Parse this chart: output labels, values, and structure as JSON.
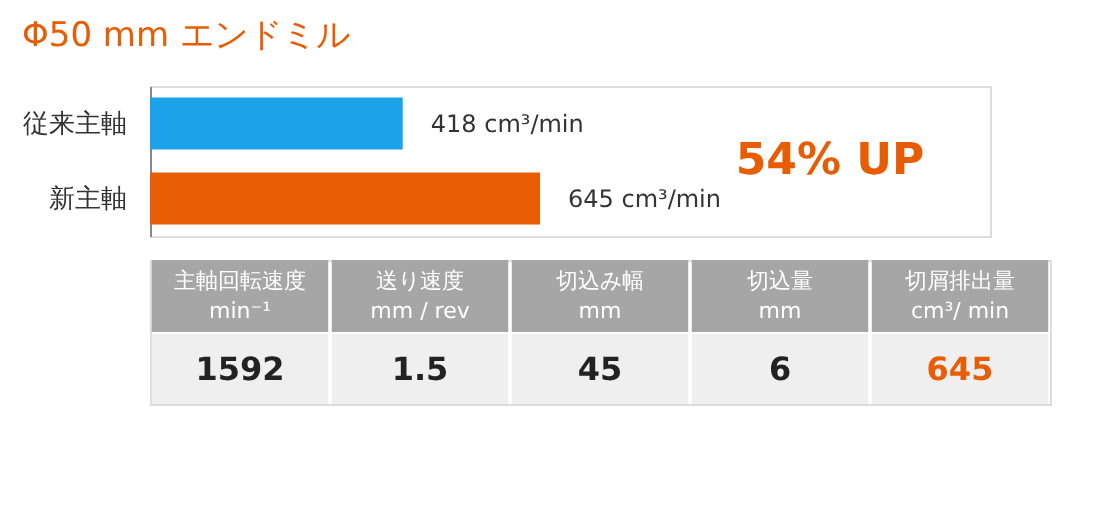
{
  "chart_data": {
    "type": "bar",
    "orientation": "horizontal",
    "title": "Φ50 mm エンドミル",
    "categories": [
      "従来主軸",
      "新主軸"
    ],
    "values": [
      418,
      645
    ],
    "colors": [
      "#1aa3e8",
      "#e85d04"
    ],
    "value_labels": [
      "418 cm³/min",
      "645 cm³/min"
    ],
    "annotations": [
      "54% UP",
      "主軸回転速度",
      "min⁻¹",
      "送り速度",
      "mm / rev",
      "切込み幅",
      "mm",
      "切込量",
      "mm",
      "切屑排出量",
      "cm³/ min",
      "1592",
      "1.5",
      "45",
      "6",
      "645"
    ],
    "grid": false
  }
}
